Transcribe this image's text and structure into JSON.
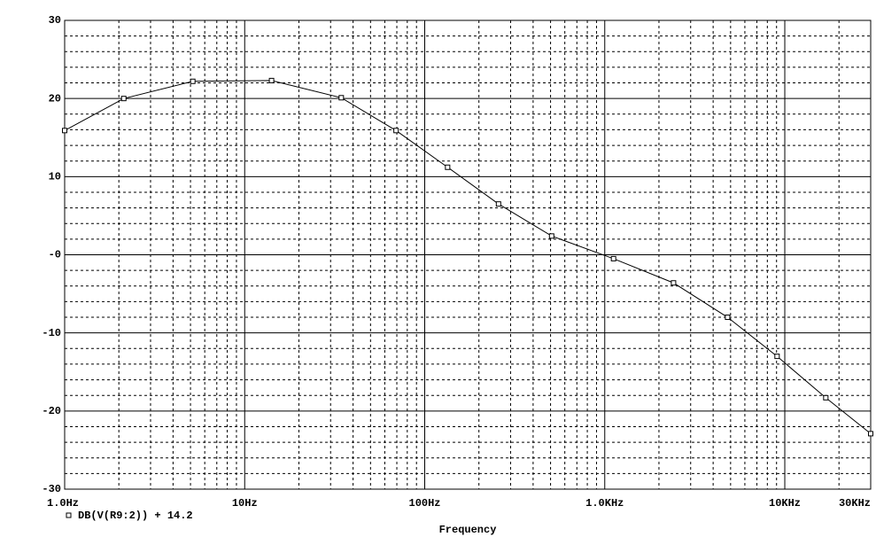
{
  "chart_data": {
    "type": "line",
    "xlabel": "Frequency",
    "xscale": "log",
    "x": [
      1,
      2.13,
      5.15,
      14.1,
      34.4,
      69.3,
      134,
      257,
      507,
      1119,
      2410,
      4810,
      9060,
      16900,
      30000
    ],
    "series": [
      {
        "name": "DB(V(R9:2)) + 14.2",
        "color": "#000000",
        "marker": "square",
        "values": [
          15.9,
          20.0,
          22.2,
          22.3,
          20.1,
          15.9,
          11.2,
          6.5,
          2.4,
          -0.5,
          -3.6,
          -8.0,
          -13.0,
          -18.3,
          -22.9
        ]
      }
    ],
    "xlim": [
      1,
      30000
    ],
    "ylim": [
      -30,
      30
    ],
    "xticks": [
      {
        "value": 1,
        "label": "1.0Hz"
      },
      {
        "value": 10,
        "label": "10Hz"
      },
      {
        "value": 100,
        "label": "100Hz"
      },
      {
        "value": 1000,
        "label": "1.0KHz"
      },
      {
        "value": 10000,
        "label": "10KHz"
      },
      {
        "value": 30000,
        "label": "30KHz"
      }
    ],
    "yticks": [
      30,
      20,
      10,
      {
        "value": 0,
        "label": "-0"
      },
      -10,
      -20,
      -30
    ],
    "x_minor_grid": [
      2,
      3,
      4,
      5,
      6,
      7,
      8,
      9,
      20,
      30,
      40,
      50,
      60,
      70,
      80,
      90,
      200,
      300,
      400,
      500,
      600,
      700,
      800,
      900,
      2000,
      3000,
      4000,
      5000,
      6000,
      7000,
      8000,
      9000,
      20000
    ],
    "y_minor_grid": [
      28,
      26,
      24,
      22,
      18,
      16,
      14,
      12,
      8,
      6,
      4,
      2,
      -2,
      -4,
      -6,
      -8,
      -12,
      -14,
      -16,
      -18,
      -22,
      -24,
      -26,
      -28
    ],
    "grid": true,
    "legend": "bottom-left"
  }
}
